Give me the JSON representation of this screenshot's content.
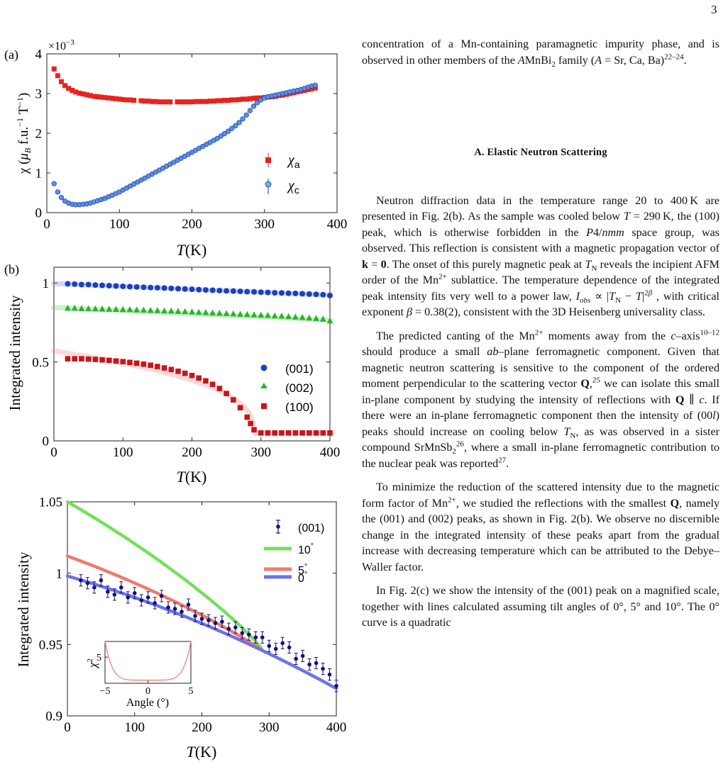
{
  "page_number": "3",
  "text": {
    "intro_para": "concentration of a Mn-containing paramagnetic impurity phase, and is observed in other members of the AMnBi2 family (A = Sr, Ca, Ba)22–24.",
    "section_heading": "A.   Elastic Neutron Scattering",
    "para1": "Neutron diffraction data in the temperature range 20 to 400 K are presented in Fig. 2(b). As the sample was cooled below T = 290 K, the (100) peak, which is otherwise forbidden in the P4/nmm space group, was observed. This reflection is consistent with a magnetic propagation vector of k = 0. The onset of this purely magnetic peak at TN reveals the incipient AFM order of the Mn2+ sublattice. The temperature dependence of the integrated peak intensity fits very well to a power law, Iobs ∝ |TN − T|2β , with critical exponent β = 0.38(2), consistent with the 3D Heisenberg universality class.",
    "para2": "The predicted canting of the Mn2+ moments away from the c–axis10–12 should produce a small ab–plane ferromagnetic component. Given that magnetic neutron scattering is sensitive to the component of the ordered moment perpendicular to the scattering vector Q,25 we can isolate this small in-plane component by studying the intensity of reflections with Q ∥ c. If there were an in-plane ferromagnetic component then the intensity of (00l) peaks should increase on cooling below TN, as was observed in a sister compound SrMnSb2 26, where a small in-plane ferromagnetic contribution to the nuclear peak was reported27.",
    "para3": "To minimize the reduction of the scattered intensity due to the magnetic form factor of Mn2+, we studied the reflections with the smallest Q, namely the (001) and (002) peaks, as shown in Fig. 2(b). We observe no discernible change in the integrated intensity of these peaks apart from the gradual increase with decreasing temperature which can be attributed to the Debye–Waller factor.",
    "para4": "In Fig. 2(c) we show the intensity of the (001) peak on a magnified scale, together with lines calculated assuming tilt angles of 0°, 5° and 10°. The 0° curve is a quadratic"
  },
  "chart_data": [
    {
      "type": "scatter",
      "panel_label": "(a)",
      "ylabel": "χ (μB f.u.−1 T−1)",
      "xlabel": "T(K)",
      "y_multiplier": "×10−3",
      "xlim": [
        0,
        400
      ],
      "ylim": [
        0,
        4
      ],
      "xticks": [
        "0",
        "100",
        "200",
        "300",
        "400"
      ],
      "yticks": [
        "0",
        "1",
        "2",
        "3",
        "4"
      ],
      "legend_position": "right",
      "series": [
        {
          "name": "χa",
          "marker": "square",
          "color": "#e8231c",
          "x": [
            10,
            15,
            20,
            25,
            30,
            35,
            40,
            45,
            50,
            55,
            60,
            65,
            70,
            75,
            80,
            85,
            90,
            95,
            100,
            105,
            110,
            115,
            120,
            130,
            135,
            140,
            145,
            150,
            155,
            160,
            165,
            170,
            180,
            185,
            190,
            195,
            200,
            205,
            210,
            215,
            220,
            225,
            230,
            235,
            240,
            245,
            250,
            255,
            260,
            265,
            270,
            275,
            280,
            285,
            290,
            295,
            300,
            305,
            310,
            315,
            320,
            325,
            330,
            335,
            340,
            345,
            350,
            355,
            360,
            365,
            370
          ],
          "y": [
            3.62,
            3.45,
            3.3,
            3.2,
            3.13,
            3.08,
            3.04,
            3.01,
            2.99,
            2.97,
            2.95,
            2.93,
            2.92,
            2.91,
            2.9,
            2.89,
            2.88,
            2.87,
            2.86,
            2.85,
            2.84,
            2.84,
            2.83,
            2.82,
            2.81,
            2.81,
            2.8,
            2.8,
            2.79,
            2.79,
            2.79,
            2.79,
            2.79,
            2.79,
            2.79,
            2.79,
            2.79,
            2.8,
            2.8,
            2.8,
            2.8,
            2.81,
            2.81,
            2.82,
            2.82,
            2.83,
            2.83,
            2.84,
            2.84,
            2.85,
            2.86,
            2.86,
            2.87,
            2.88,
            2.89,
            2.89,
            2.9,
            2.91,
            2.92,
            2.93,
            2.95,
            2.96,
            2.98,
            3.0,
            3.02,
            3.04,
            3.06,
            3.08,
            3.1,
            3.12,
            3.14
          ]
        },
        {
          "name": "χc",
          "marker": "circle",
          "color": "#5b8ee8",
          "x": [
            10,
            15,
            20,
            25,
            30,
            35,
            40,
            45,
            50,
            55,
            60,
            65,
            70,
            75,
            80,
            85,
            90,
            95,
            100,
            105,
            110,
            115,
            120,
            125,
            130,
            135,
            140,
            145,
            150,
            155,
            160,
            165,
            170,
            175,
            180,
            185,
            190,
            195,
            200,
            205,
            210,
            215,
            220,
            225,
            230,
            235,
            240,
            245,
            250,
            255,
            260,
            265,
            270,
            275,
            280,
            285,
            290,
            295,
            300,
            305,
            310,
            315,
            320,
            325,
            330,
            335,
            340,
            345,
            350,
            355,
            360,
            365,
            370
          ],
          "y": [
            0.73,
            0.52,
            0.38,
            0.29,
            0.24,
            0.21,
            0.2,
            0.2,
            0.21,
            0.22,
            0.24,
            0.27,
            0.3,
            0.33,
            0.36,
            0.4,
            0.44,
            0.48,
            0.52,
            0.57,
            0.62,
            0.67,
            0.72,
            0.77,
            0.82,
            0.87,
            0.92,
            0.97,
            1.02,
            1.07,
            1.12,
            1.17,
            1.22,
            1.27,
            1.32,
            1.37,
            1.42,
            1.47,
            1.52,
            1.57,
            1.62,
            1.67,
            1.72,
            1.77,
            1.82,
            1.87,
            1.93,
            1.99,
            2.05,
            2.12,
            2.19,
            2.27,
            2.36,
            2.46,
            2.57,
            2.68,
            2.77,
            2.84,
            2.89,
            2.92,
            2.94,
            2.96,
            2.98,
            3.0,
            3.02,
            3.04,
            3.06,
            3.08,
            3.1,
            3.13,
            3.16,
            3.19,
            3.21
          ]
        }
      ]
    },
    {
      "type": "scatter",
      "panel_label": "(b)",
      "ylabel": "Integrated intensity",
      "xlabel": "T(K)",
      "xlim": [
        0,
        400
      ],
      "ylim": [
        0,
        1.1
      ],
      "xticks": [
        "0",
        "100",
        "200",
        "300",
        "400"
      ],
      "yticks": [
        "0",
        "0.5",
        "1"
      ],
      "legend_position": "right",
      "series": [
        {
          "name": "(001)",
          "marker": "circle",
          "color": "#1f3fbf",
          "x": [
            20,
            30,
            40,
            50,
            60,
            70,
            80,
            90,
            100,
            110,
            120,
            130,
            140,
            150,
            160,
            170,
            180,
            190,
            200,
            210,
            220,
            230,
            240,
            250,
            260,
            270,
            280,
            290,
            300,
            310,
            320,
            330,
            340,
            350,
            360,
            370,
            380,
            390,
            400
          ],
          "y": [
            0.995,
            0.993,
            0.99,
            0.99,
            0.987,
            0.985,
            0.983,
            0.981,
            0.979,
            0.977,
            0.975,
            0.973,
            0.971,
            0.97,
            0.968,
            0.966,
            0.964,
            0.962,
            0.96,
            0.958,
            0.956,
            0.954,
            0.952,
            0.95,
            0.949,
            0.947,
            0.945,
            0.944,
            0.942,
            0.94,
            0.938,
            0.937,
            0.935,
            0.934,
            0.932,
            0.93,
            0.928,
            0.926,
            0.921
          ]
        },
        {
          "name": "(002)",
          "marker": "triangle",
          "color": "#29b529",
          "x": [
            20,
            30,
            40,
            50,
            60,
            70,
            80,
            90,
            100,
            110,
            120,
            130,
            140,
            150,
            160,
            170,
            180,
            190,
            200,
            210,
            220,
            230,
            240,
            250,
            260,
            270,
            280,
            290,
            300,
            310,
            320,
            330,
            340,
            350,
            360,
            370,
            380,
            390,
            400
          ],
          "y": [
            0.84,
            0.84,
            0.838,
            0.837,
            0.836,
            0.835,
            0.834,
            0.833,
            0.832,
            0.831,
            0.829,
            0.828,
            0.826,
            0.825,
            0.823,
            0.822,
            0.82,
            0.818,
            0.816,
            0.814,
            0.812,
            0.81,
            0.808,
            0.806,
            0.804,
            0.802,
            0.8,
            0.798,
            0.796,
            0.794,
            0.792,
            0.79,
            0.787,
            0.784,
            0.781,
            0.778,
            0.775,
            0.771,
            0.76
          ]
        },
        {
          "name": "(100)",
          "marker": "square",
          "color": "#c4161c",
          "x": [
            20,
            30,
            40,
            50,
            60,
            70,
            80,
            90,
            100,
            110,
            120,
            130,
            140,
            150,
            160,
            170,
            180,
            190,
            200,
            210,
            220,
            230,
            240,
            250,
            260,
            270,
            280,
            285,
            290,
            300,
            310,
            320,
            330,
            340,
            350,
            360,
            370,
            380,
            390,
            400
          ],
          "y": [
            0.52,
            0.52,
            0.52,
            0.518,
            0.516,
            0.513,
            0.51,
            0.506,
            0.502,
            0.497,
            0.492,
            0.486,
            0.479,
            0.471,
            0.462,
            0.452,
            0.441,
            0.428,
            0.414,
            0.398,
            0.38,
            0.358,
            0.332,
            0.3,
            0.26,
            0.21,
            0.15,
            0.11,
            0.07,
            0.05,
            0.05,
            0.05,
            0.05,
            0.05,
            0.05,
            0.05,
            0.05,
            0.05,
            0.05,
            0.05
          ]
        }
      ]
    },
    {
      "type": "line",
      "panel_label": "",
      "ylabel": "Integrated intensity",
      "xlabel": "T(K)",
      "xlim": [
        0,
        400
      ],
      "ylim": [
        0.9,
        1.05
      ],
      "xticks": [
        "0",
        "100",
        "200",
        "300",
        "400"
      ],
      "yticks": [
        "0.9",
        "0.95",
        "1",
        "1.05"
      ],
      "legend_position": "top-right",
      "series": [
        {
          "name": "(001)",
          "marker": "circle-errorbar",
          "color": "#12127a",
          "x": [
            20,
            30,
            40,
            50,
            60,
            70,
            80,
            90,
            100,
            110,
            120,
            130,
            140,
            150,
            160,
            170,
            180,
            190,
            200,
            210,
            220,
            230,
            240,
            250,
            260,
            270,
            280,
            290,
            300,
            310,
            320,
            330,
            340,
            350,
            360,
            370,
            380,
            390,
            400
          ],
          "y": [
            0.995,
            0.993,
            0.99,
            0.995,
            0.987,
            0.985,
            0.99,
            0.983,
            0.986,
            0.981,
            0.983,
            0.979,
            0.984,
            0.976,
            0.975,
            0.973,
            0.978,
            0.97,
            0.968,
            0.967,
            0.965,
            0.966,
            0.961,
            0.962,
            0.958,
            0.957,
            0.955,
            0.955,
            0.949,
            0.947,
            0.951,
            0.948,
            0.94,
            0.942,
            0.936,
            0.937,
            0.933,
            0.929,
            0.921
          ],
          "err": 0.004
        },
        {
          "name": "10°",
          "color": "#74e05c",
          "curve": "tilt",
          "y0": 1.05
        },
        {
          "name": "5°",
          "color": "#f07a70",
          "curve": "tilt",
          "y0": 1.012
        },
        {
          "name": "0°",
          "color": "#6e73e8",
          "curve": "quadratic",
          "y0": 0.998,
          "y400": 0.921
        }
      ],
      "inset": {
        "type": "line",
        "ylabel": "χ2",
        "xlabel": "Angle (°)",
        "xlim": [
          -5,
          5
        ],
        "ylim": [
          0,
          8
        ],
        "xticks": [
          "−5",
          "0",
          "5"
        ],
        "yticks": [
          "5"
        ],
        "color": "#f07a70"
      }
    }
  ]
}
